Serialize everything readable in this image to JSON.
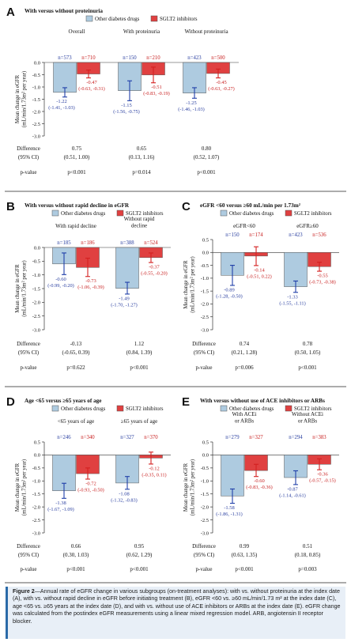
{
  "colors": {
    "other": "#aecbe0",
    "sglt2": "#e04040",
    "other_err": "#1f3ea8",
    "sglt2_err": "#d42020",
    "other_label": "#2a3fa0",
    "sglt2_label": "#c81e1e",
    "caption_bg": "#e8eff7",
    "caption_bar": "#2a6aa8"
  },
  "legend": {
    "other": "Other diabetes drugs",
    "sglt2": "SGLT2 inhibitors"
  },
  "ylabel": [
    "Mean change in eGFR",
    "(mL/min/1.73m² per year)"
  ],
  "row_labels": {
    "diff1": "Difference",
    "diff2": "(95% CI)",
    "p": "p-value"
  },
  "caption": {
    "label": "Figure 2",
    "text": "—Annual rate of eGFR change in various subgroups (on-treatment analyses): with vs. without proteinuria at the index date (A), with vs. without rapid decline in eGFR before initiating treatment (B), eGFR <60 vs. ≥60 mL/min/1.73 m² at the index date (C), age <65 vs. ≥65 years at the index date (D), and with vs. without use of ACE inhibitors or ARBs at the index date (E). eGFR change was calculated from the postindex eGFR measurements using a linear mixed regression model. ARB, angiotensin II receptor blocker."
  },
  "chart_data": [
    {
      "panel": "A",
      "type": "bar",
      "title": "With versus without proteinuria",
      "ylim": [
        -3.0,
        0
      ],
      "yticks": [
        "0.0",
        "-0.5",
        "-1.0",
        "-1.5",
        "-2.0",
        "-2.5",
        "-3.0"
      ],
      "categories": [
        {
          "name": [
            "Overall"
          ],
          "n_other": "n=573",
          "n_sglt2": "n=710",
          "other": {
            "value": -1.22,
            "ci": [
              -1.41,
              -1.03
            ],
            "label": "-1.22",
            "ci_label": "(-1.41, -1.03)"
          },
          "sglt2": {
            "value": -0.47,
            "ci": [
              -0.63,
              -0.31
            ],
            "label": "-0.47",
            "ci_label": "(-0.63, -0.31)"
          },
          "diff": "0.75",
          "diff_ci": "(0.51, 1.00)",
          "p": "p<0.001"
        },
        {
          "name": [
            "With proteinuria"
          ],
          "n_other": "n=150",
          "n_sglt2": "n=210",
          "other": {
            "value": -1.15,
            "ci": [
              -1.56,
              -0.75
            ],
            "label": "-1.15",
            "ci_label": "(-1.56, -0.75)"
          },
          "sglt2": {
            "value": -0.51,
            "ci": [
              -0.83,
              -0.19
            ],
            "label": "-0.51",
            "ci_label": "(-0.83, -0.19)"
          },
          "diff": "0.65",
          "diff_ci": "(0.13, 1.16)",
          "p": "p=0.014"
        },
        {
          "name": [
            "Without proteinuria"
          ],
          "n_other": "n=423",
          "n_sglt2": "n=500",
          "other": {
            "value": -1.25,
            "ci": [
              -1.46,
              -1.03
            ],
            "label": "-1.25",
            "ci_label": "(-1.46, -1.03)"
          },
          "sglt2": {
            "value": -0.45,
            "ci": [
              -0.63,
              -0.27
            ],
            "label": "-0.45",
            "ci_label": "(-0.63, -0.27)"
          },
          "diff": "0.80",
          "diff_ci": "(0.52, 1.07)",
          "p": "p<0.001"
        }
      ]
    },
    {
      "panel": "B",
      "type": "bar",
      "title": "With versus without rapid decline in eGFR",
      "ylim": [
        -3.0,
        0
      ],
      "yticks": [
        "0.0",
        "-0.5",
        "-1.0",
        "-1.5",
        "-2.0",
        "-2.5",
        "-3.0"
      ],
      "categories": [
        {
          "name": [
            "With rapid decline"
          ],
          "n_other": "n=185",
          "n_sglt2": "n=186",
          "other": {
            "value": -0.6,
            "ci": [
              -0.99,
              -0.2
            ],
            "label": "-0.60",
            "ci_label": "(-0.99, -0.20)"
          },
          "sglt2": {
            "value": -0.73,
            "ci": [
              -1.06,
              -0.39
            ],
            "label": "-0.73",
            "ci_label": "(-1.06, -0.39)"
          },
          "diff": "-0.13",
          "diff_ci": "(-0.65, 0.39)",
          "p": "p=0.622"
        },
        {
          "name": [
            "Without rapid",
            "decline"
          ],
          "n_other": "n=388",
          "n_sglt2": "n=524",
          "other": {
            "value": -1.49,
            "ci": [
              -1.7,
              -1.27
            ],
            "label": "-1.49",
            "ci_label": "(-1.70, -1.27)"
          },
          "sglt2": {
            "value": -0.37,
            "ci": [
              -0.55,
              -0.2
            ],
            "label": "-0.37",
            "ci_label": "(-0.55, -0.20)"
          },
          "diff": "1.12",
          "diff_ci": "(0.84, 1.39)",
          "p": "p<0.001"
        }
      ]
    },
    {
      "panel": "C",
      "type": "bar",
      "title": "eGFR <60 versus ≥60 mL/min per 1.73m²",
      "ylim": [
        -3.0,
        0.5
      ],
      "yticks": [
        "0.5",
        "0.0",
        "-0.5",
        "-1.0",
        "-1.5",
        "-2.0",
        "-2.5",
        "-3.0"
      ],
      "categories": [
        {
          "name": [
            "eGFR<60"
          ],
          "n_other": "n=150",
          "n_sglt2": "n=174",
          "other": {
            "value": -0.89,
            "ci": [
              -1.28,
              -0.5
            ],
            "label": "-0.89",
            "ci_label": "(-1.28, -0.50)"
          },
          "sglt2": {
            "value": -0.14,
            "ci": [
              -0.51,
              0.22
            ],
            "label": "-0.14",
            "ci_label": "(-0.51, 0.22)"
          },
          "diff": "0.74",
          "diff_ci": "(0.21, 1.28)",
          "p": "p=0.006"
        },
        {
          "name": [
            "eGFR≥60"
          ],
          "n_other": "n=423",
          "n_sglt2": "n=536",
          "other": {
            "value": -1.33,
            "ci": [
              -1.55,
              -1.11
            ],
            "label": "-1.33",
            "ci_label": "(-1.55, -1.11)"
          },
          "sglt2": {
            "value": -0.55,
            "ci": [
              -0.73,
              -0.38
            ],
            "label": "-0.55",
            "ci_label": "(-0.73, -0.38)"
          },
          "diff": "0.78",
          "diff_ci": "(0.50, 1.05)",
          "p": "p<0.001"
        }
      ]
    },
    {
      "panel": "D",
      "type": "bar",
      "title": "Age <65 versus ≥65 years of age",
      "ylim": [
        -3.0,
        0.5
      ],
      "yticks": [
        "0.5",
        "0.0",
        "-0.5",
        "-1.0",
        "-1.5",
        "-2.0",
        "-2.5",
        "-3.0"
      ],
      "categories": [
        {
          "name": [
            "<65 years of age"
          ],
          "n_other": "n=246",
          "n_sglt2": "n=340",
          "other": {
            "value": -1.38,
            "ci": [
              -1.67,
              -1.09
            ],
            "label": "-1.38",
            "ci_label": "(-1.67, -1.09)"
          },
          "sglt2": {
            "value": -0.72,
            "ci": [
              -0.93,
              -0.5
            ],
            "label": "-0.72",
            "ci_label": "(-0.93, -0.50)"
          },
          "diff": "0.66",
          "diff_ci": "(0.30, 1.03)",
          "p": "p<0.001"
        },
        {
          "name": [
            "≥65 years of age"
          ],
          "n_other": "n=327",
          "n_sglt2": "n=370",
          "other": {
            "value": -1.08,
            "ci": [
              -1.32,
              -0.83
            ],
            "label": "-1.08",
            "ci_label": "(-1.32, -0.83)"
          },
          "sglt2": {
            "value": -0.12,
            "ci": [
              -0.35,
              0.11
            ],
            "label": "-0.12",
            "ci_label": "(-0.35, 0.11)"
          },
          "diff": "0.95",
          "diff_ci": "(0.62, 1.29)",
          "p": "p<0.001"
        }
      ]
    },
    {
      "panel": "E",
      "type": "bar",
      "title": "With versus without use of ACE inhibitors or ARBs",
      "ylim": [
        -3.0,
        0.5
      ],
      "yticks": [
        "0.5",
        "0.0",
        "-0.5",
        "-1.0",
        "-1.5",
        "-2.0",
        "-2.5",
        "-3.0"
      ],
      "categories": [
        {
          "name": [
            "With ACEi",
            "or ARBs"
          ],
          "n_other": "n=279",
          "n_sglt2": "n=327",
          "other": {
            "value": -1.58,
            "ci": [
              -1.86,
              -1.31
            ],
            "label": "-1.58",
            "ci_label": "(-1.86, -1.31)"
          },
          "sglt2": {
            "value": -0.6,
            "ci": [
              -0.83,
              -0.36
            ],
            "label": "-0.60",
            "ci_label": "(-0.83, -0.36)"
          },
          "diff": "0.99",
          "diff_ci": "(0.63, 1.35)",
          "p": "p<0.001"
        },
        {
          "name": [
            "Without ACEi",
            "or ARBs"
          ],
          "n_other": "n=294",
          "n_sglt2": "n=383",
          "other": {
            "value": -0.87,
            "ci": [
              -1.14,
              -0.61
            ],
            "label": "-0.87",
            "ci_label": "(-1.14, -0.61)"
          },
          "sglt2": {
            "value": -0.36,
            "ci": [
              -0.57,
              -0.15
            ],
            "label": "-0.36",
            "ci_label": "(-0.57, -0.15)"
          },
          "diff": "0.51",
          "diff_ci": "(0.18, 0.85)",
          "p": "p=0.003"
        }
      ]
    }
  ]
}
